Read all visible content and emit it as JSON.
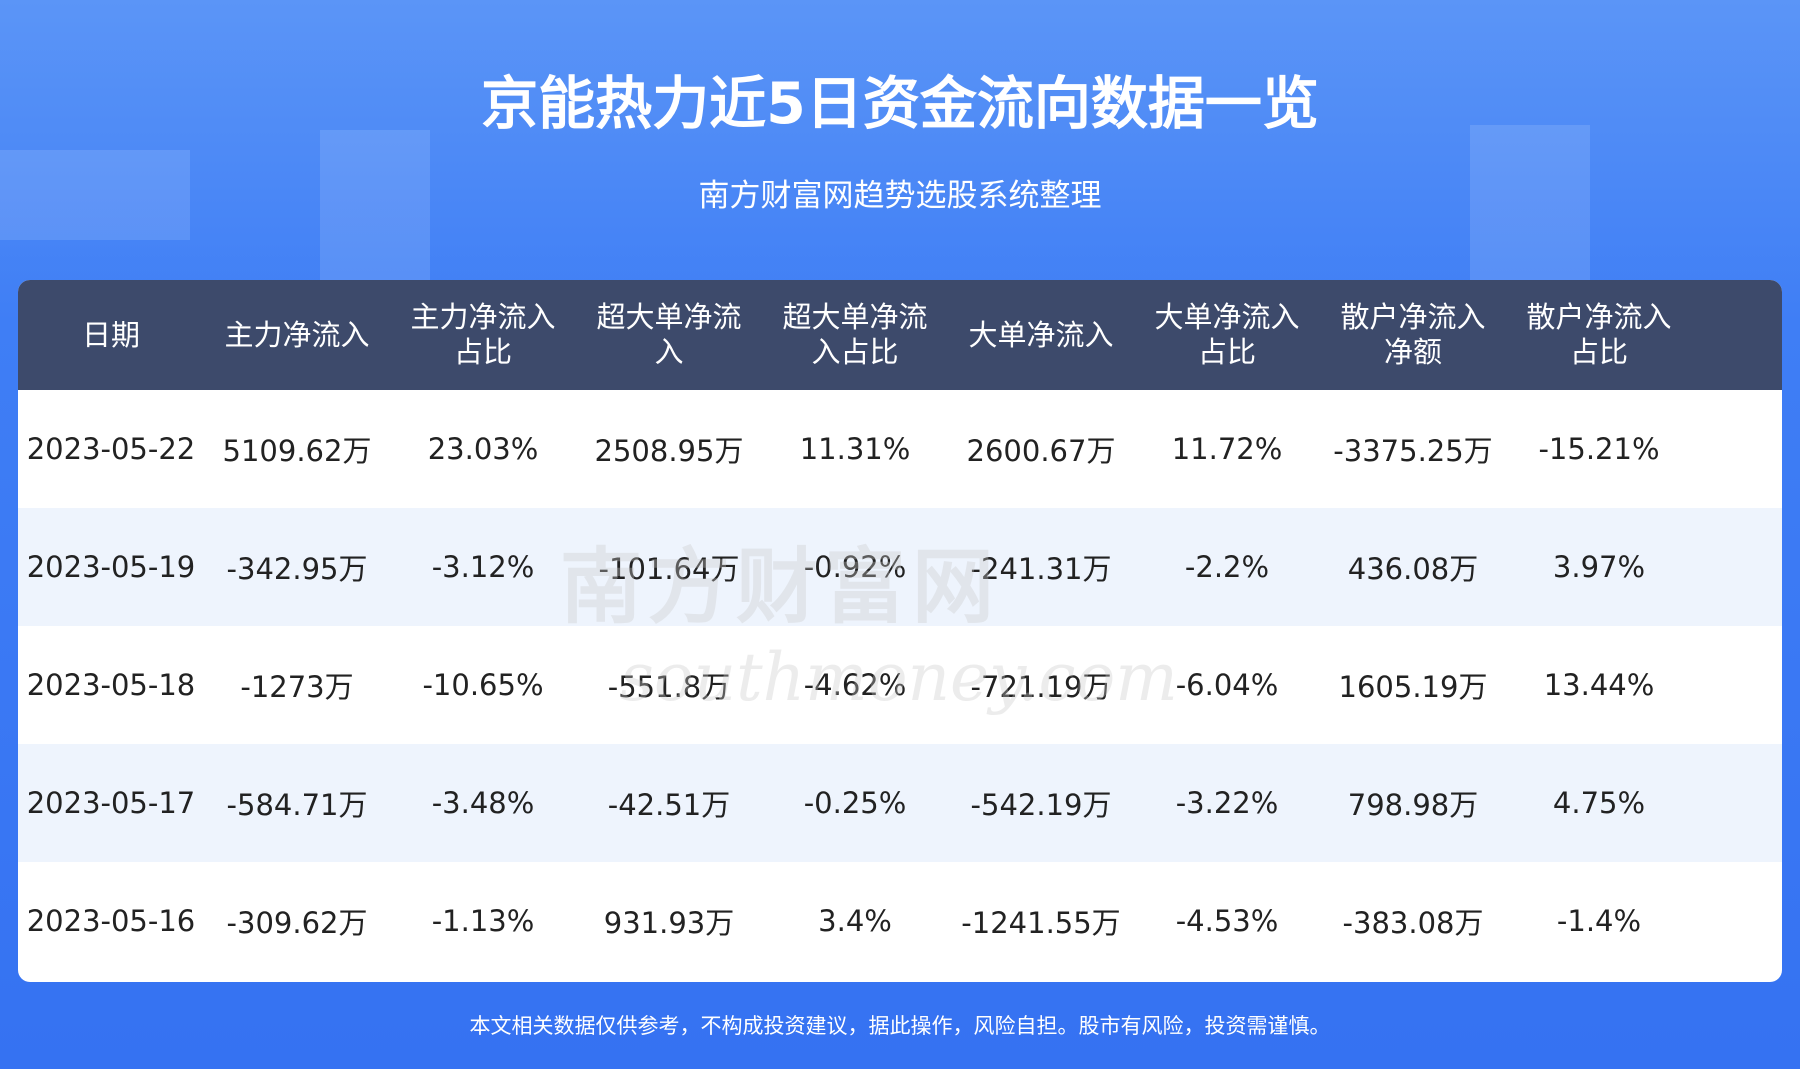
{
  "header": {
    "title": "京能热力近5日资金流向数据一览",
    "subtitle": "南方财富网趋势选股系统整理"
  },
  "table": {
    "columns": [
      "日期",
      "主力净流入",
      "主力净流入占比",
      "超大单净流入",
      "超大单净流入占比",
      "大单净流入",
      "大单净流入占比",
      "散户净流入净额",
      "散户净流入占比"
    ],
    "rows": [
      [
        "2023-05-22",
        "5109.62万",
        "23.03%",
        "2508.95万",
        "11.31%",
        "2600.67万",
        "11.72%",
        "-3375.25万",
        "-15.21%"
      ],
      [
        "2023-05-19",
        "-342.95万",
        "-3.12%",
        "-101.64万",
        "-0.92%",
        "-241.31万",
        "-2.2%",
        "436.08万",
        "3.97%"
      ],
      [
        "2023-05-18",
        "-1273万",
        "-10.65%",
        "-551.8万",
        "-4.62%",
        "-721.19万",
        "-6.04%",
        "1605.19万",
        "13.44%"
      ],
      [
        "2023-05-17",
        "-584.71万",
        "-3.48%",
        "-42.51万",
        "-0.25%",
        "-542.19万",
        "-3.22%",
        "798.98万",
        "4.75%"
      ],
      [
        "2023-05-16",
        "-309.62万",
        "-1.13%",
        "931.93万",
        "3.4%",
        "-1241.55万",
        "-4.53%",
        "-383.08万",
        "-1.4%"
      ]
    ]
  },
  "watermark": {
    "name": "南方财富网",
    "site": "southmoney.com"
  },
  "footer": {
    "disclaimer": "本文相关数据仅供参考，不构成投资建议，据此操作，风险自担。股市有风险，投资需谨慎。"
  }
}
